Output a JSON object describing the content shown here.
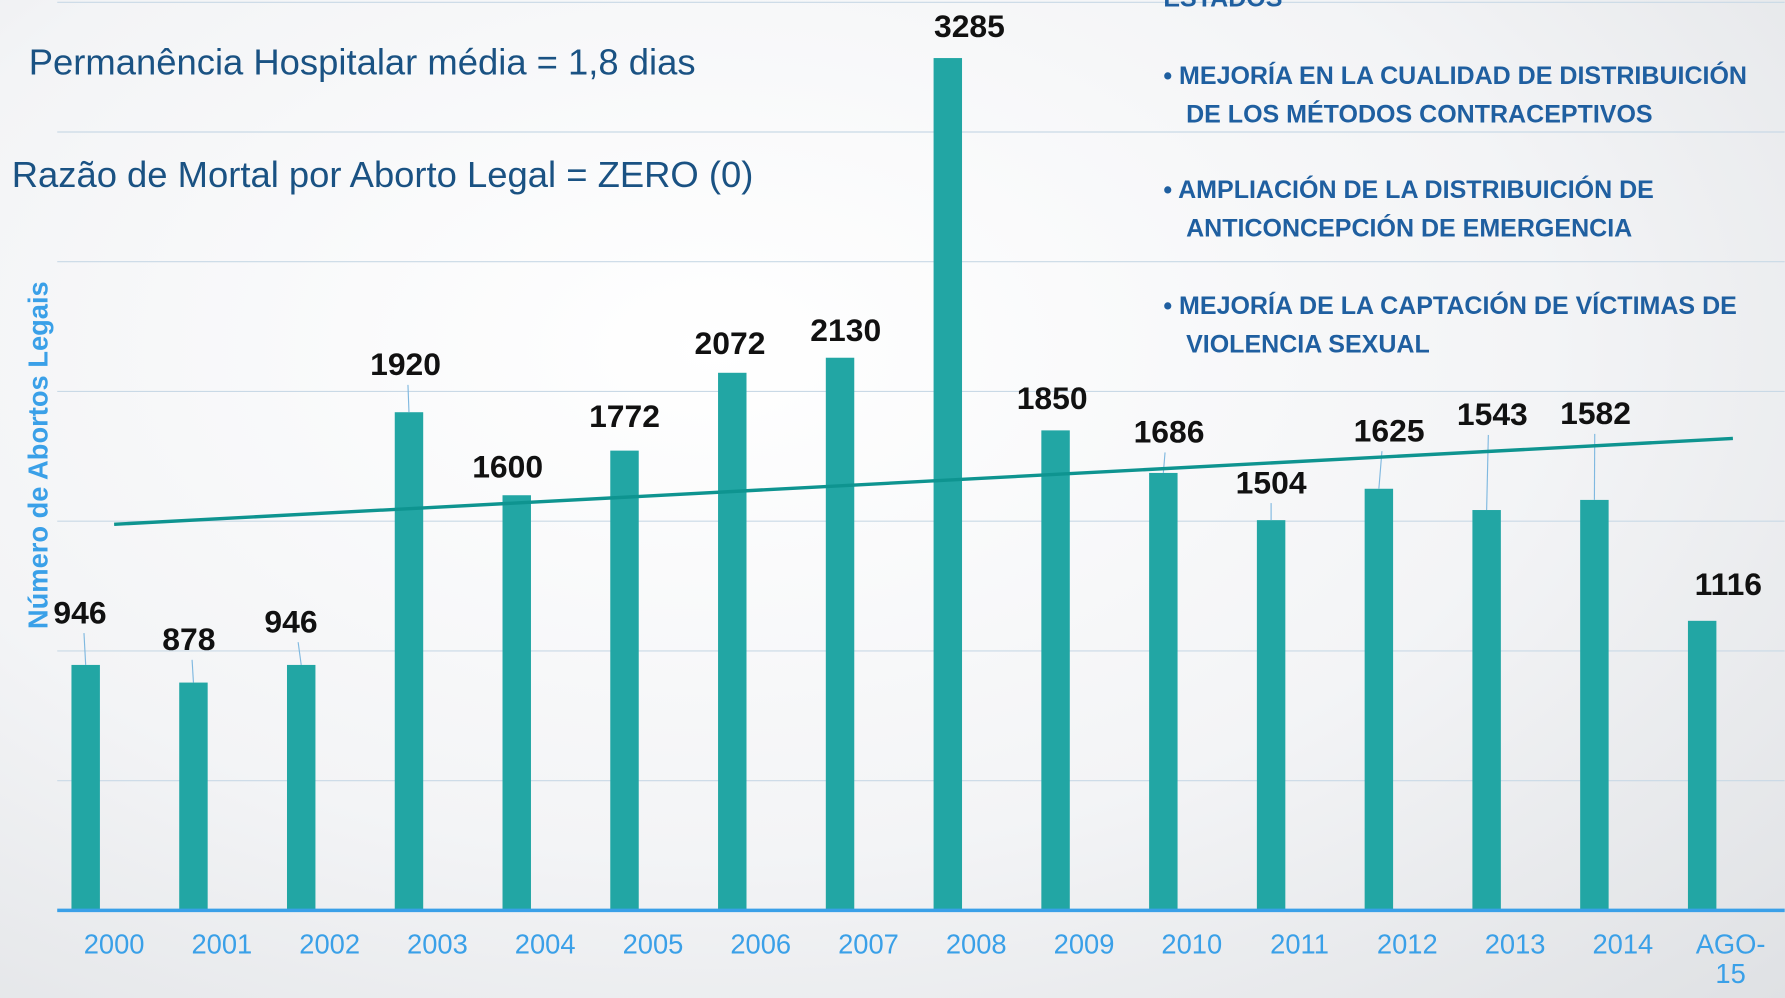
{
  "chart_data": {
    "type": "bar",
    "annotations": [
      "Permanência Hospitalar média = 1,8 dias",
      "Razão de Mortal por Aborto Legal = ZERO (0)"
    ],
    "y_label": "Número de Abortos Legais",
    "bullets": {
      "heading": "ESTADOS",
      "items": [
        [
          "• MEJORÍA EN LA CUALIDAD DE DISTRIBUICIÓN",
          "DE LOS MÉTODOS CONTRACEPTIVOS"
        ],
        [
          "• AMPLIACIÓN DE LA DISTRIBUICIÓN DE",
          "ANTICONCEPCIÓN DE EMERGENCIA"
        ],
        [
          "• MEJORÍA DE LA CAPTACIÓN DE VÍCTIMAS DE",
          "VIOLENCIA SEXUAL"
        ]
      ]
    },
    "categories": [
      "2000",
      "2001",
      "2002",
      "2003",
      "2004",
      "2005",
      "2006",
      "2007",
      "2008",
      "2009",
      "2010",
      "2011",
      "2012",
      "2013",
      "2014",
      "AGO-15"
    ],
    "values": [
      946,
      878,
      946,
      1920,
      1600,
      1772,
      2072,
      2130,
      3285,
      1850,
      1686,
      1504,
      1625,
      1543,
      1582,
      1116
    ],
    "color": "#22a6a4",
    "trendline_color": "#0e9490",
    "trendline": true,
    "ylim": [
      0,
      3500
    ],
    "yticks": [
      0,
      500,
      1000,
      1500,
      2000,
      2500,
      3000,
      3500
    ],
    "grid": true
  }
}
